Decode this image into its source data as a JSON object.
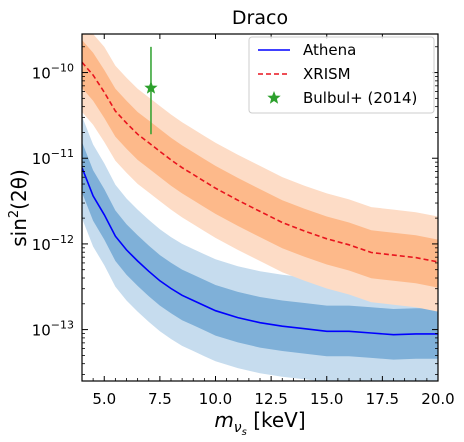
{
  "chart_data": {
    "type": "line",
    "title": "Draco",
    "xlabel_main": "m",
    "xlabel_sub": "ν",
    "xlabel_subsub": "s",
    "xlabel_unit": " [keV]",
    "ylabel_main": "sin",
    "ylabel_sup": "2",
    "ylabel_rest": "(2θ)",
    "x_scale": "linear",
    "y_scale": "log",
    "xlim": [
      4.0,
      20.0
    ],
    "ylim_log10": [
      -13.6,
      -9.55
    ],
    "grid": false,
    "legend_placement": "top-right",
    "x_ticks": [
      {
        "value": 5.0,
        "label": "5.0"
      },
      {
        "value": 7.5,
        "label": "7.5"
      },
      {
        "value": 10.0,
        "label": "10.0"
      },
      {
        "value": 12.5,
        "label": "12.5"
      },
      {
        "value": 15.0,
        "label": "15.0"
      },
      {
        "value": 17.5,
        "label": "17.5"
      },
      {
        "value": 20.0,
        "label": "20.0"
      }
    ],
    "y_ticks": [
      {
        "exp": -10,
        "base": "10",
        "sup": "−10"
      },
      {
        "exp": -11,
        "base": "10",
        "sup": "−11"
      },
      {
        "exp": -12,
        "base": "10",
        "sup": "−12"
      },
      {
        "exp": -13,
        "base": "10",
        "sup": "−13"
      }
    ],
    "series": [
      {
        "name": "Athena",
        "style": "solid",
        "color": "#0000ff",
        "band_inner_color": "#7fb0d8",
        "band_outer_color": "#c6dcee",
        "x": [
          4.0,
          4.5,
          5.0,
          5.5,
          6.0,
          6.5,
          7.0,
          7.5,
          8.0,
          8.5,
          9.0,
          9.5,
          10.0,
          11.0,
          12.0,
          13.0,
          14.0,
          15.0,
          16.0,
          17.0,
          18.0,
          19.0,
          20.0
        ],
        "median_log10": [
          -11.11,
          -11.44,
          -11.66,
          -11.91,
          -12.07,
          -12.2,
          -12.32,
          -12.43,
          -12.52,
          -12.6,
          -12.66,
          -12.72,
          -12.78,
          -12.86,
          -12.92,
          -12.96,
          -12.99,
          -13.02,
          -13.02,
          -13.04,
          -13.06,
          -13.05,
          -13.05
        ],
        "inner_lo_log10": [
          -11.4,
          -11.73,
          -11.95,
          -12.2,
          -12.36,
          -12.49,
          -12.61,
          -12.72,
          -12.81,
          -12.89,
          -12.95,
          -13.01,
          -13.07,
          -13.15,
          -13.21,
          -13.25,
          -13.28,
          -13.31,
          -13.31,
          -13.33,
          -13.35,
          -13.34,
          -13.34
        ],
        "inner_hi_log10": [
          -10.81,
          -11.14,
          -11.36,
          -11.61,
          -11.77,
          -11.9,
          -12.02,
          -12.13,
          -12.22,
          -12.3,
          -12.36,
          -12.42,
          -12.48,
          -12.56,
          -12.62,
          -12.66,
          -12.69,
          -12.72,
          -12.72,
          -12.74,
          -12.76,
          -12.75,
          -12.75
        ],
        "outer_lo_log10": [
          -11.7,
          -12.03,
          -12.25,
          -12.5,
          -12.66,
          -12.79,
          -12.91,
          -13.02,
          -13.11,
          -13.19,
          -13.25,
          -13.31,
          -13.37,
          -13.45,
          -13.51,
          -13.55,
          -13.58,
          -13.61,
          -13.61,
          -13.63,
          -13.65,
          -13.64,
          -13.64
        ],
        "outer_hi_log10": [
          -10.51,
          -10.84,
          -11.06,
          -11.31,
          -11.47,
          -11.6,
          -11.72,
          -11.83,
          -11.92,
          -12.0,
          -12.06,
          -12.12,
          -12.18,
          -12.26,
          -12.32,
          -12.36,
          -12.39,
          -12.42,
          -12.42,
          -12.44,
          -12.46,
          -12.45,
          -12.45
        ]
      },
      {
        "name": "XRISM",
        "style": "dashed",
        "color": "#e8141e",
        "band_inner_color": "#fdb98a",
        "band_outer_color": "#fddcc6",
        "x": [
          4.0,
          4.5,
          5.0,
          5.5,
          6.0,
          6.5,
          7.0,
          7.5,
          8.0,
          8.5,
          9.0,
          9.5,
          10.0,
          11.0,
          12.0,
          13.0,
          14.0,
          15.0,
          16.0,
          17.0,
          18.0,
          19.0,
          20.0
        ],
        "median_log10": [
          -9.88,
          -10.03,
          -10.23,
          -10.45,
          -10.59,
          -10.72,
          -10.82,
          -10.92,
          -11.02,
          -11.11,
          -11.19,
          -11.27,
          -11.35,
          -11.49,
          -11.62,
          -11.75,
          -11.85,
          -11.94,
          -12.01,
          -12.1,
          -12.13,
          -12.16,
          -12.21
        ],
        "inner_lo_log10": [
          -10.18,
          -10.33,
          -10.53,
          -10.75,
          -10.89,
          -11.02,
          -11.12,
          -11.22,
          -11.32,
          -11.41,
          -11.49,
          -11.57,
          -11.65,
          -11.79,
          -11.92,
          -12.05,
          -12.15,
          -12.24,
          -12.31,
          -12.4,
          -12.43,
          -12.46,
          -12.51
        ],
        "inner_hi_log10": [
          -9.62,
          -9.77,
          -9.97,
          -10.19,
          -10.33,
          -10.46,
          -10.56,
          -10.66,
          -10.76,
          -10.85,
          -10.93,
          -11.01,
          -11.09,
          -11.23,
          -11.36,
          -11.49,
          -11.59,
          -11.68,
          -11.75,
          -11.84,
          -11.87,
          -11.9,
          -11.95
        ],
        "outer_lo_log10": [
          -10.46,
          -10.61,
          -10.81,
          -11.03,
          -11.17,
          -11.3,
          -11.4,
          -11.5,
          -11.6,
          -11.69,
          -11.77,
          -11.85,
          -11.93,
          -12.07,
          -12.2,
          -12.33,
          -12.43,
          -12.52,
          -12.59,
          -12.68,
          -12.71,
          -12.74,
          -12.79
        ],
        "outer_hi_log10": [
          -9.55,
          -9.55,
          -9.7,
          -9.92,
          -10.06,
          -10.19,
          -10.29,
          -10.39,
          -10.49,
          -10.58,
          -10.66,
          -10.74,
          -10.82,
          -10.96,
          -11.09,
          -11.22,
          -11.32,
          -11.41,
          -11.48,
          -11.57,
          -11.6,
          -11.63,
          -11.68
        ]
      },
      {
        "name": "Bulbul+ (2014)",
        "style": "marker-star",
        "color": "#2ca02c",
        "x": [
          7.1
        ],
        "y_log10": [
          -10.18
        ],
        "err_lo_log10": [
          -10.72
        ],
        "err_hi_log10": [
          -9.7
        ]
      }
    ]
  }
}
